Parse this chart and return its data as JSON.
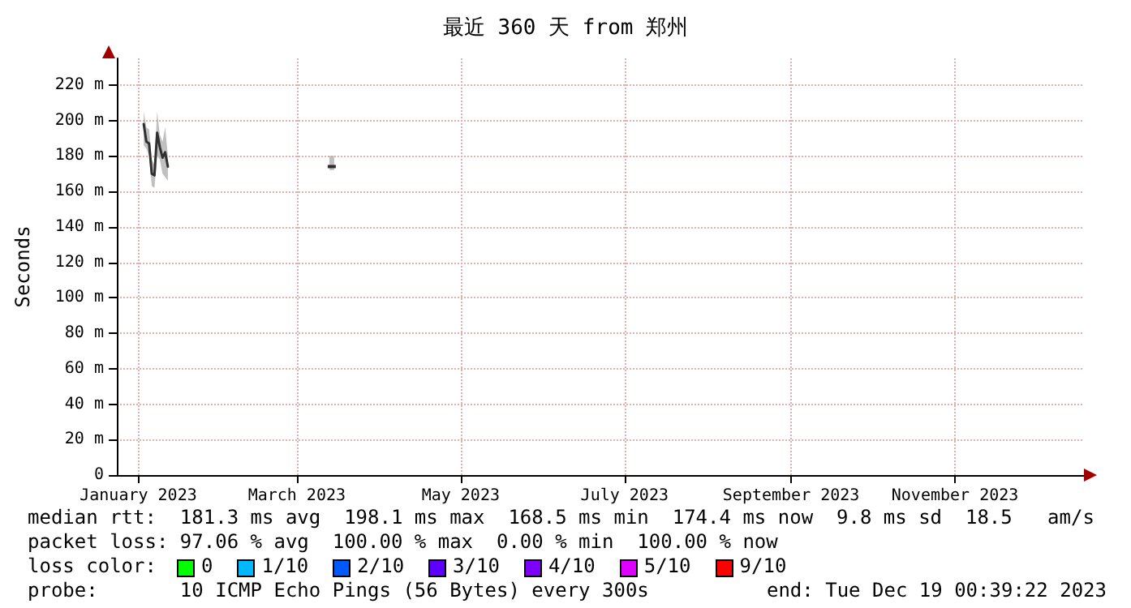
{
  "chart_data": {
    "type": "line",
    "title": "最近 360 天 from 郑州",
    "ylabel": "Seconds",
    "x": [
      "2023-01-03",
      "2023-01-04",
      "2023-01-05",
      "2023-01-06",
      "2023-01-07",
      "2023-01-08",
      "2023-01-09",
      "2023-01-10",
      "2023-01-11",
      "2023-01-12",
      "2023-02-01",
      "2023-03-14"
    ],
    "series": [
      {
        "color": "#303030",
        "values": [
          198,
          188,
          187,
          170,
          169,
          193,
          185,
          179,
          182,
          174,
          null,
          174
        ],
        "lower": [
          186,
          184,
          180,
          163,
          162,
          180,
          178,
          170,
          168,
          166,
          null,
          172
        ],
        "upper": [
          205,
          196,
          195,
          178,
          175,
          205,
          192,
          188,
          196,
          180,
          null,
          180
        ]
      }
    ],
    "xlim": [
      "2022-12-24",
      "2023-12-19"
    ],
    "xticks": [
      {
        "value": "2023-01-01",
        "label": "January 2023"
      },
      {
        "value": "2023-03-01",
        "label": "March 2023"
      },
      {
        "value": "2023-05-01",
        "label": "May 2023"
      },
      {
        "value": "2023-07-01",
        "label": "July 2023"
      },
      {
        "value": "2023-09-01",
        "label": "September 2023"
      },
      {
        "value": "2023-11-01",
        "label": "November 2023"
      }
    ],
    "ylim": [
      0,
      235
    ],
    "yticks": [
      0,
      {
        "value": 20,
        "label": "20 m"
      },
      {
        "value": 40,
        "label": "40 m"
      },
      {
        "value": 60,
        "label": "60 m"
      },
      {
        "value": 80,
        "label": "80 m"
      },
      {
        "value": 100,
        "label": "100 m"
      },
      {
        "value": 120,
        "label": "120 m"
      },
      {
        "value": 140,
        "label": "140 m"
      },
      {
        "value": 160,
        "label": "160 m"
      },
      {
        "value": 180,
        "label": "180 m"
      },
      {
        "value": 200,
        "label": "200 m"
      },
      {
        "value": 220,
        "label": "220 m"
      }
    ],
    "grid": true,
    "marker": "none",
    "line_style": "solid",
    "annotations": [
      "median rtt:  181.3 ms avg  198.1 ms max  168.5 ms min  174.4 ms now  9.8 ms sd  18.5   am/s",
      "packet loss: 97.06 % avg  100.00 % max  0.00 % min  100.00 % now",
      "loss color:",
      "0",
      "1/10",
      "2/10",
      "3/10",
      "4/10",
      "5/10",
      "9/10",
      "probe:       10 ICMP Echo Pings (56 Bytes) every 300s",
      "end: Tue Dec 19 00:39:22 2023"
    ]
  }
}
